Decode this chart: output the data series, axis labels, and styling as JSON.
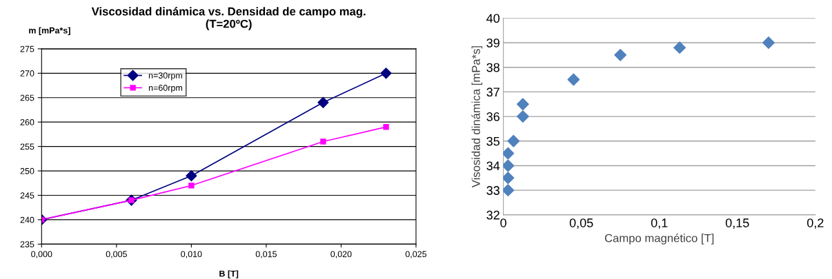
{
  "chart_data": [
    {
      "type": "line",
      "title": "Viscosidad dinámica vs. Densidad de campo mag.\n(T=20ºC)",
      "xlabel": "B [T]",
      "ylabel": "m [mPa*s]",
      "series": [
        {
          "name": "n=30rpm",
          "color": "#000080",
          "marker": "diamond",
          "x": [
            0,
            0.006,
            0.01,
            0.0188,
            0.023
          ],
          "values": [
            240,
            244,
            249,
            264,
            270
          ]
        },
        {
          "name": "n=60rpm",
          "color": "#ff00ff",
          "marker": "square",
          "x": [
            0,
            0.006,
            0.01,
            0.0188,
            0.023
          ],
          "values": [
            240,
            244,
            247,
            256,
            259
          ]
        }
      ],
      "xlim": [
        0,
        0.025
      ],
      "xticks": [
        {
          "value": 0,
          "label": "0,000"
        },
        {
          "value": 0.005,
          "label": "0,005"
        },
        {
          "value": 0.01,
          "label": "0,010"
        },
        {
          "value": 0.015,
          "label": "0,015"
        },
        {
          "value": 0.02,
          "label": "0,020"
        },
        {
          "value": 0.025,
          "label": "0,025"
        }
      ],
      "ylim": [
        235,
        275
      ],
      "yticks": [
        235,
        240,
        245,
        250,
        255,
        260,
        265,
        270,
        275
      ],
      "grid": "y",
      "legend": "top left"
    },
    {
      "type": "scatter",
      "xlabel": "Campo magnético [T]",
      "ylabel": "Visosidad dinámica [mPa*s]",
      "marker": "diamond",
      "series": [
        {
          "color": "#4f81bd",
          "x": [
            0.003,
            0.003,
            0.003,
            0.003,
            0.0065,
            0.0125,
            0.0125,
            0.045,
            0.075,
            0.113,
            0.17
          ],
          "values": [
            33,
            33.5,
            34,
            34.5,
            35,
            36,
            36.5,
            37.5,
            38.5,
            38.8,
            39
          ]
        }
      ],
      "xlim": [
        0,
        0.2
      ],
      "xticks": [
        0,
        {
          "value": 0.05,
          "label": "0,05"
        },
        {
          "value": 0.1,
          "label": "0,1"
        },
        {
          "value": 0.15,
          "label": "0,15"
        },
        {
          "value": 0.2,
          "label": "0,2"
        }
      ],
      "ylim": [
        32,
        40
      ],
      "yticks": [
        32,
        33,
        34,
        35,
        36,
        37,
        38,
        39,
        40
      ],
      "grid": "y"
    }
  ]
}
